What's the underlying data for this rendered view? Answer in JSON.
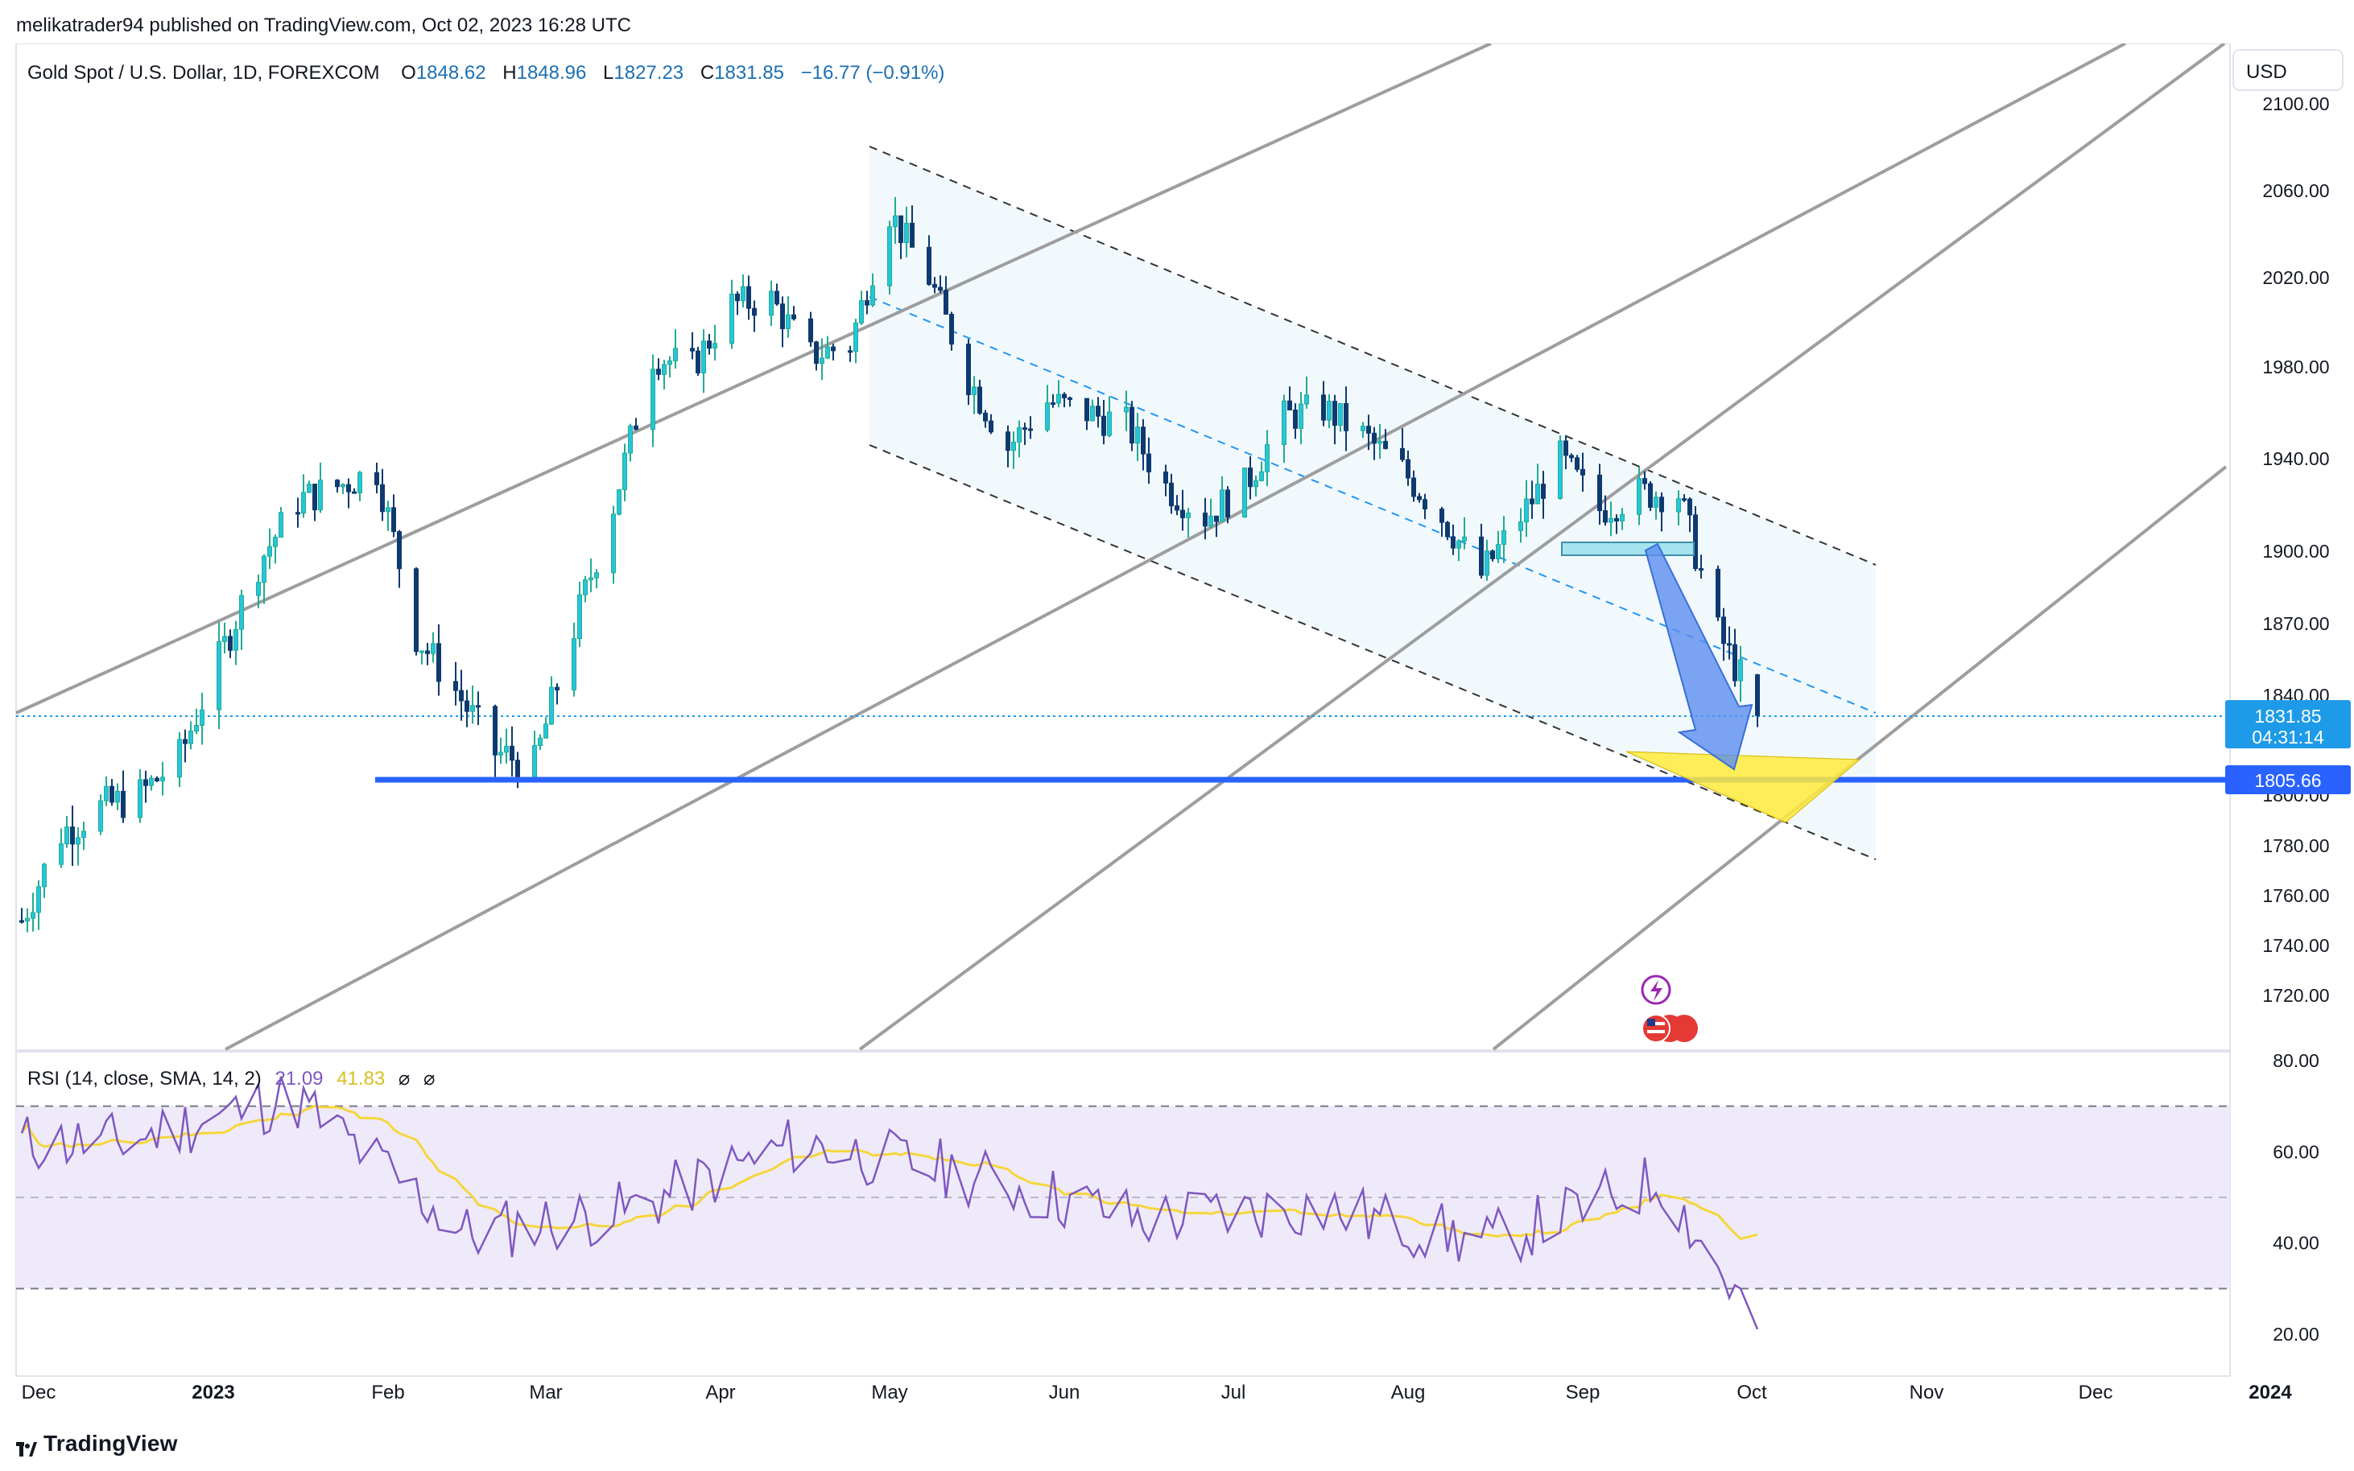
{
  "header": {
    "publisher": "melikatrader94 published on TradingView.com, Oct 02, 2023 16:28 UTC"
  },
  "legend": {
    "symbol": "Gold Spot / U.S. Dollar, 1D, FOREXCOM",
    "o_label": "O",
    "o": "1848.62",
    "h_label": "H",
    "h": "1848.96",
    "l_label": "L",
    "l": "1827.23",
    "c_label": "C",
    "c": "1831.85",
    "change": "−16.77 (−0.91%)"
  },
  "currency_button": "USD",
  "price_axis": {
    "ticks": [
      "2100.00",
      "2060.00",
      "2020.00",
      "1980.00",
      "1940.00",
      "1900.00",
      "1870.00",
      "1840.00",
      "1800.00",
      "1780.00",
      "1760.00",
      "1740.00",
      "1720.00"
    ],
    "last_price": "1831.85",
    "countdown": "04:31:14",
    "level_label": "1805.66"
  },
  "time_axis": {
    "labels": [
      "Dec",
      "2023",
      "Feb",
      "Mar",
      "Apr",
      "May",
      "Jun",
      "Jul",
      "Aug",
      "Sep",
      "Oct",
      "Nov",
      "Dec",
      "2024"
    ]
  },
  "rsi": {
    "label": "RSI (14, close, SMA, 14, 2)",
    "rsi_value": "21.09",
    "sma_value": "41.83",
    "extra1": "⌀",
    "extra2": "⌀",
    "ticks": [
      "80.00",
      "60.00",
      "40.00",
      "20.00"
    ],
    "upper_band": 70,
    "middle_band": 50,
    "lower_band": 30
  },
  "footer": {
    "brand": "TradingView"
  },
  "colors": {
    "up": "#22ab94",
    "up_fill": "#26c6da",
    "down": "#0e3a70",
    "support": "#2962ff",
    "last_price_badge": "#1e9be8",
    "rsi_line": "#7e57c2",
    "rsi_sma": "#f5d63c",
    "rsi_fill": "#efeaf9",
    "target_zone": "#ffeb3b",
    "arrow": "#5b8def"
  },
  "chart_data": {
    "type": "candlestick",
    "title": "Gold Spot / U.S. Dollar, 1D, FOREXCOM",
    "ylim": [
      1700,
      2115
    ],
    "support_level": 1805.66,
    "last_close": 1831.85,
    "series": [
      {
        "name": "XAUUSD",
        "close_path": [
          [
            "2022-11-28",
            1750
          ],
          [
            "2022-12-05",
            1785
          ],
          [
            "2022-12-12",
            1795
          ],
          [
            "2022-12-19",
            1800
          ],
          [
            "2022-12-26",
            1815
          ],
          [
            "2023-01-02",
            1855
          ],
          [
            "2023-01-09",
            1895
          ],
          [
            "2023-01-16",
            1922
          ],
          [
            "2023-01-23",
            1928
          ],
          [
            "2023-01-30",
            1935
          ],
          [
            "2023-02-06",
            1865
          ],
          [
            "2023-02-13",
            1842
          ],
          [
            "2023-02-20",
            1817
          ],
          [
            "2023-02-27",
            1812
          ],
          [
            "2023-03-06",
            1868
          ],
          [
            "2023-03-13",
            1920
          ],
          [
            "2023-03-20",
            1985
          ],
          [
            "2023-03-27",
            1980
          ],
          [
            "2023-04-03",
            2008
          ],
          [
            "2023-04-10",
            2010
          ],
          [
            "2023-04-17",
            1985
          ],
          [
            "2023-04-24",
            1990
          ],
          [
            "2023-05-01",
            2050
          ],
          [
            "2023-05-08",
            2020
          ],
          [
            "2023-05-15",
            1975
          ],
          [
            "2023-05-22",
            1945
          ],
          [
            "2023-05-29",
            1965
          ],
          [
            "2023-06-05",
            1960
          ],
          [
            "2023-06-12",
            1955
          ],
          [
            "2023-06-19",
            1928
          ],
          [
            "2023-06-26",
            1915
          ],
          [
            "2023-07-03",
            1928
          ],
          [
            "2023-07-10",
            1958
          ],
          [
            "2023-07-17",
            1962
          ],
          [
            "2023-07-24",
            1950
          ],
          [
            "2023-07-31",
            1935
          ],
          [
            "2023-08-07",
            1915
          ],
          [
            "2023-08-14",
            1890
          ],
          [
            "2023-08-21",
            1915
          ],
          [
            "2023-08-28",
            1940
          ],
          [
            "2023-09-04",
            1918
          ],
          [
            "2023-09-11",
            1925
          ],
          [
            "2023-09-18",
            1925
          ],
          [
            "2023-09-25",
            1866
          ],
          [
            "2023-09-29",
            1848
          ],
          [
            "2023-10-02",
            1831.85
          ]
        ]
      },
      {
        "name": "RSI",
        "values_by_month": [
          [
            "2022-12",
            62
          ],
          [
            "2023-01",
            72
          ],
          [
            "2023-02",
            42
          ],
          [
            "2023-03",
            47
          ],
          [
            "2023-04",
            62
          ],
          [
            "2023-05",
            55
          ],
          [
            "2023-06",
            45
          ],
          [
            "2023-07",
            48
          ],
          [
            "2023-08",
            40
          ],
          [
            "2023-09",
            54
          ],
          [
            "2023-10",
            21.09
          ]
        ]
      }
    ]
  }
}
